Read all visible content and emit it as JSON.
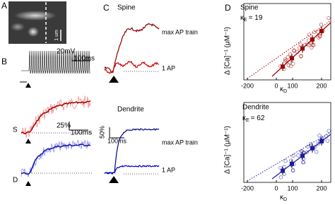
{
  "panel_a": {
    "label": "A",
    "scale": "1 um"
  },
  "panel_b": {
    "label": "B",
    "voltage_scale": "20mV",
    "time_scale": "100ms",
    "spine_label": "S",
    "ca_scale": "25%",
    "ca_time_scale": "100ms",
    "dendrite_label": "D"
  },
  "panel_c": {
    "label": "C",
    "spine_title": "Spine",
    "spine_train": "max AP train",
    "spine_single": "1 AP",
    "dendrite_title": "Dendrite",
    "ca_scale": "50%",
    "time_scale": "100ms",
    "dendrite_train": "max AP train",
    "dendrite_single": "1 AP"
  },
  "panel_d": {
    "label": "D",
    "y_label": "Δ [Ca]⁻¹ (μM⁻¹)",
    "top": {
      "title": "Spine",
      "symbol": "κ",
      "sub": "E",
      "value": "= 19",
      "x_label": "κ",
      "x_sub": "D",
      "xticks": [
        -200,
        0,
        100,
        200
      ]
    },
    "bottom": {
      "title": "Dendrite",
      "symbol": "κ",
      "sub": "E",
      "value": "= 62",
      "x_label": "κ",
      "x_sub": "D",
      "xticks": [
        -200,
        0,
        100,
        200
      ]
    }
  }
}
